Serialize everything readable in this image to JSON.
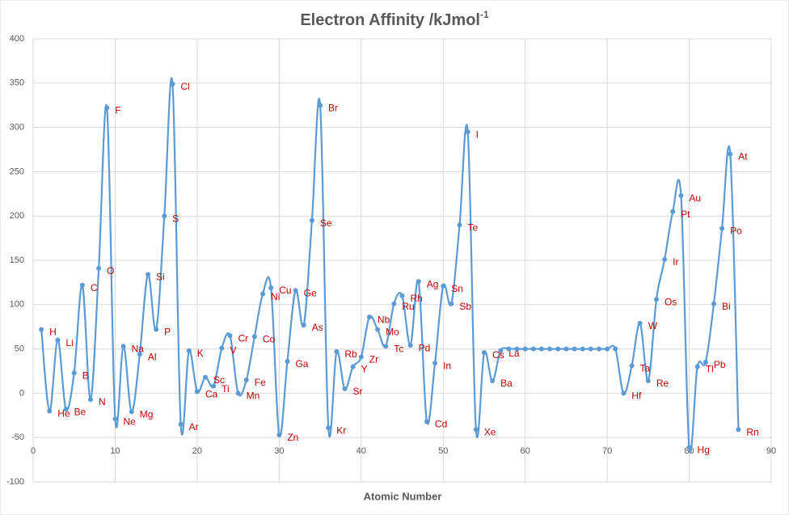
{
  "chart_data": {
    "type": "line",
    "title": "Electron Affinity /kJmol",
    "title_superscript": "-1",
    "x_label": "Atomic Number",
    "x": [
      1,
      2,
      3,
      4,
      5,
      6,
      7,
      8,
      9,
      10,
      11,
      12,
      13,
      14,
      15,
      16,
      17,
      18,
      19,
      20,
      21,
      22,
      23,
      24,
      25,
      26,
      27,
      28,
      29,
      30,
      31,
      32,
      33,
      34,
      35,
      36,
      37,
      38,
      39,
      40,
      41,
      42,
      43,
      44,
      45,
      46,
      47,
      48,
      49,
      50,
      51,
      52,
      53,
      54,
      55,
      56,
      57,
      58,
      59,
      60,
      61,
      62,
      63,
      64,
      65,
      66,
      67,
      68,
      69,
      70,
      71,
      72,
      73,
      74,
      75,
      76,
      77,
      78,
      79,
      80,
      81,
      82,
      83,
      84,
      85,
      86
    ],
    "series": [
      {
        "color": "#5b9bd5",
        "label_color": "#c00000",
        "values": [
          72,
          -20,
          60,
          -18,
          23,
          122,
          -7,
          141,
          322,
          -29,
          53,
          -21,
          44,
          134,
          72,
          200,
          349,
          -35,
          48,
          2,
          18,
          8,
          51,
          65,
          0,
          15,
          64,
          112,
          119,
          -47,
          36,
          116,
          77,
          195,
          325,
          -39,
          47,
          5,
          30,
          41,
          86,
          72,
          53,
          101,
          110,
          54,
          126,
          -32,
          34,
          121,
          101,
          190,
          295,
          -41,
          46,
          14,
          48,
          50,
          50,
          50,
          50,
          50,
          50,
          50,
          50,
          50,
          50,
          50,
          50,
          50,
          50,
          0,
          31,
          79,
          14,
          106,
          151,
          205,
          223,
          -61,
          30,
          35,
          101,
          186,
          270,
          -41
        ],
        "point_labels": [
          "H",
          "He",
          "Li",
          "Be",
          "B",
          "C",
          "N",
          "O",
          "F",
          "Ne",
          "Na",
          "Mg",
          "Al",
          "Si",
          "P",
          "S",
          "Cl",
          "Ar",
          "K",
          "Ca",
          "Sc",
          "Ti",
          "V",
          "Cr",
          "Mn",
          "Fe",
          "Co",
          "Ni",
          "Cu",
          "Zn",
          "Ga",
          "Ge",
          "As",
          "Se",
          "Br",
          "Kr",
          "Rb",
          "Sr",
          "Y",
          "Zr",
          "Nb",
          "Mo",
          "Tc",
          "Ru",
          "Rh",
          "Pd",
          "Ag",
          "Cd",
          "In",
          "Sn",
          "Sb",
          "Te",
          "I",
          "Xe",
          "Cs",
          "Ba",
          "La",
          null,
          null,
          null,
          null,
          null,
          null,
          null,
          null,
          null,
          null,
          null,
          null,
          null,
          null,
          "Hf",
          "Ta",
          "W",
          "Re",
          "Os",
          "Ir",
          "Pt",
          "Au",
          "Hg",
          "Tl",
          "Pb",
          "Bi",
          "Po",
          "At",
          "Rn"
        ]
      }
    ],
    "xlim": [
      0,
      90
    ],
    "xticks": [
      0,
      10,
      20,
      30,
      40,
      50,
      60,
      70,
      80,
      90
    ],
    "ylim": [
      -100,
      400
    ],
    "yticks": [
      -100,
      -50,
      0,
      50,
      100,
      150,
      200,
      250,
      300,
      350,
      400
    ],
    "grid": true
  }
}
